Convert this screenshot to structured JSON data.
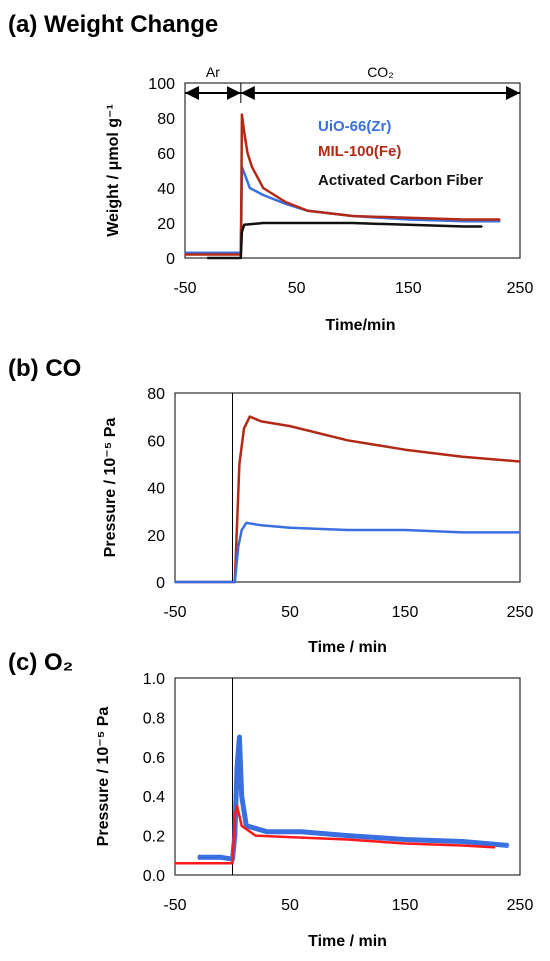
{
  "colors": {
    "uio": "#3a6fe0",
    "mil": "#b22a16",
    "acf": "#111111",
    "o2_red": "#ff1a1a",
    "frame": "#000000"
  },
  "chart_data": [
    {
      "type": "line",
      "panel_label": "(a) Weight Change",
      "xlabel": "Time/min",
      "ylabel": "Weight / μmol g⁻¹",
      "xlim": [
        -50,
        250
      ],
      "ylim": [
        0,
        100
      ],
      "xticks": [
        "-50",
        "50",
        "150",
        "250"
      ],
      "yticks": [
        "0",
        "20",
        "40",
        "60",
        "80",
        "100"
      ],
      "regions": [
        {
          "label": "Ar",
          "from": -50,
          "to": 0
        },
        {
          "label": "CO₂",
          "from": 0,
          "to": 250
        }
      ],
      "legend_placement": "inside-right",
      "grid": false,
      "series": [
        {
          "name": "UiO-66(Zr)",
          "color": "uio",
          "points": [
            [
              -50,
              3
            ],
            [
              -10,
              3
            ],
            [
              0,
              3
            ],
            [
              0.5,
              25
            ],
            [
              1,
              52
            ],
            [
              4,
              47
            ],
            [
              8,
              40
            ],
            [
              20,
              36
            ],
            [
              40,
              31
            ],
            [
              60,
              27
            ],
            [
              100,
              24
            ],
            [
              150,
              22
            ],
            [
              200,
              21
            ],
            [
              232,
              21
            ]
          ]
        },
        {
          "name": "MIL-100(Fe)",
          "color": "mil",
          "points": [
            [
              -50,
              2
            ],
            [
              -10,
              2
            ],
            [
              0,
              2
            ],
            [
              0.5,
              40
            ],
            [
              1,
              82
            ],
            [
              3,
              72
            ],
            [
              6,
              60
            ],
            [
              10,
              52
            ],
            [
              20,
              40
            ],
            [
              40,
              32
            ],
            [
              60,
              27
            ],
            [
              100,
              24
            ],
            [
              150,
              23
            ],
            [
              200,
              22
            ],
            [
              232,
              22
            ]
          ]
        },
        {
          "name": "Activated Carbon Fiber",
          "color": "acf",
          "points": [
            [
              -30,
              0
            ],
            [
              -10,
              0
            ],
            [
              0,
              0
            ],
            [
              1,
              15
            ],
            [
              3,
              19
            ],
            [
              20,
              20
            ],
            [
              50,
              20
            ],
            [
              100,
              20
            ],
            [
              150,
              19
            ],
            [
              200,
              18
            ],
            [
              216,
              18
            ]
          ]
        }
      ]
    },
    {
      "type": "line",
      "panel_label": "(b) CO",
      "xlabel": "Time / min",
      "ylabel": "Pressure / 10⁻⁵ Pa",
      "xlim": [
        -50,
        250
      ],
      "ylim": [
        0,
        80
      ],
      "xticks": [
        "-50",
        "50",
        "150",
        "250"
      ],
      "yticks": [
        "0",
        "20",
        "40",
        "60",
        "80"
      ],
      "marker_line_x": 0,
      "grid": false,
      "series": [
        {
          "color": "mil",
          "points": [
            [
              -50,
              0
            ],
            [
              0,
              0
            ],
            [
              2,
              0
            ],
            [
              6,
              50
            ],
            [
              10,
              65
            ],
            [
              15,
              70
            ],
            [
              25,
              68
            ],
            [
              50,
              66
            ],
            [
              100,
              60
            ],
            [
              150,
              56
            ],
            [
              200,
              53
            ],
            [
              250,
              51
            ]
          ]
        },
        {
          "color": "uio",
          "points": [
            [
              -50,
              0
            ],
            [
              0,
              0
            ],
            [
              2,
              0
            ],
            [
              5,
              15
            ],
            [
              8,
              22
            ],
            [
              12,
              25
            ],
            [
              25,
              24
            ],
            [
              50,
              23
            ],
            [
              100,
              22
            ],
            [
              150,
              22
            ],
            [
              200,
              21
            ],
            [
              250,
              21
            ]
          ]
        }
      ]
    },
    {
      "type": "line",
      "panel_label": "(c) O₂",
      "xlabel": "Time / min",
      "ylabel": "Pressure / 10⁻⁵ Pa",
      "xlim": [
        -50,
        250
      ],
      "ylim": [
        0.0,
        1.0
      ],
      "xticks": [
        "-50",
        "50",
        "150",
        "250"
      ],
      "yticks": [
        "0.0",
        "0.2",
        "0.4",
        "0.6",
        "0.8",
        "1.0"
      ],
      "marker_line_x": 0,
      "grid": false,
      "series": [
        {
          "color": "uio",
          "points": [
            [
              -30,
              0.09
            ],
            [
              -10,
              0.09
            ],
            [
              0,
              0.08
            ],
            [
              2,
              0.2
            ],
            [
              4,
              0.55
            ],
            [
              6,
              0.7
            ],
            [
              8,
              0.4
            ],
            [
              12,
              0.25
            ],
            [
              30,
              0.22
            ],
            [
              60,
              0.22
            ],
            [
              100,
              0.2
            ],
            [
              150,
              0.18
            ],
            [
              200,
              0.17
            ],
            [
              240,
              0.15
            ]
          ]
        },
        {
          "color": "o2_red",
          "points": [
            [
              -50,
              0.06
            ],
            [
              -30,
              0.06
            ],
            [
              0,
              0.06
            ],
            [
              2,
              0.3
            ],
            [
              4,
              0.35
            ],
            [
              8,
              0.25
            ],
            [
              20,
              0.2
            ],
            [
              60,
              0.19
            ],
            [
              100,
              0.18
            ],
            [
              150,
              0.16
            ],
            [
              200,
              0.15
            ],
            [
              228,
              0.14
            ]
          ]
        }
      ]
    }
  ]
}
